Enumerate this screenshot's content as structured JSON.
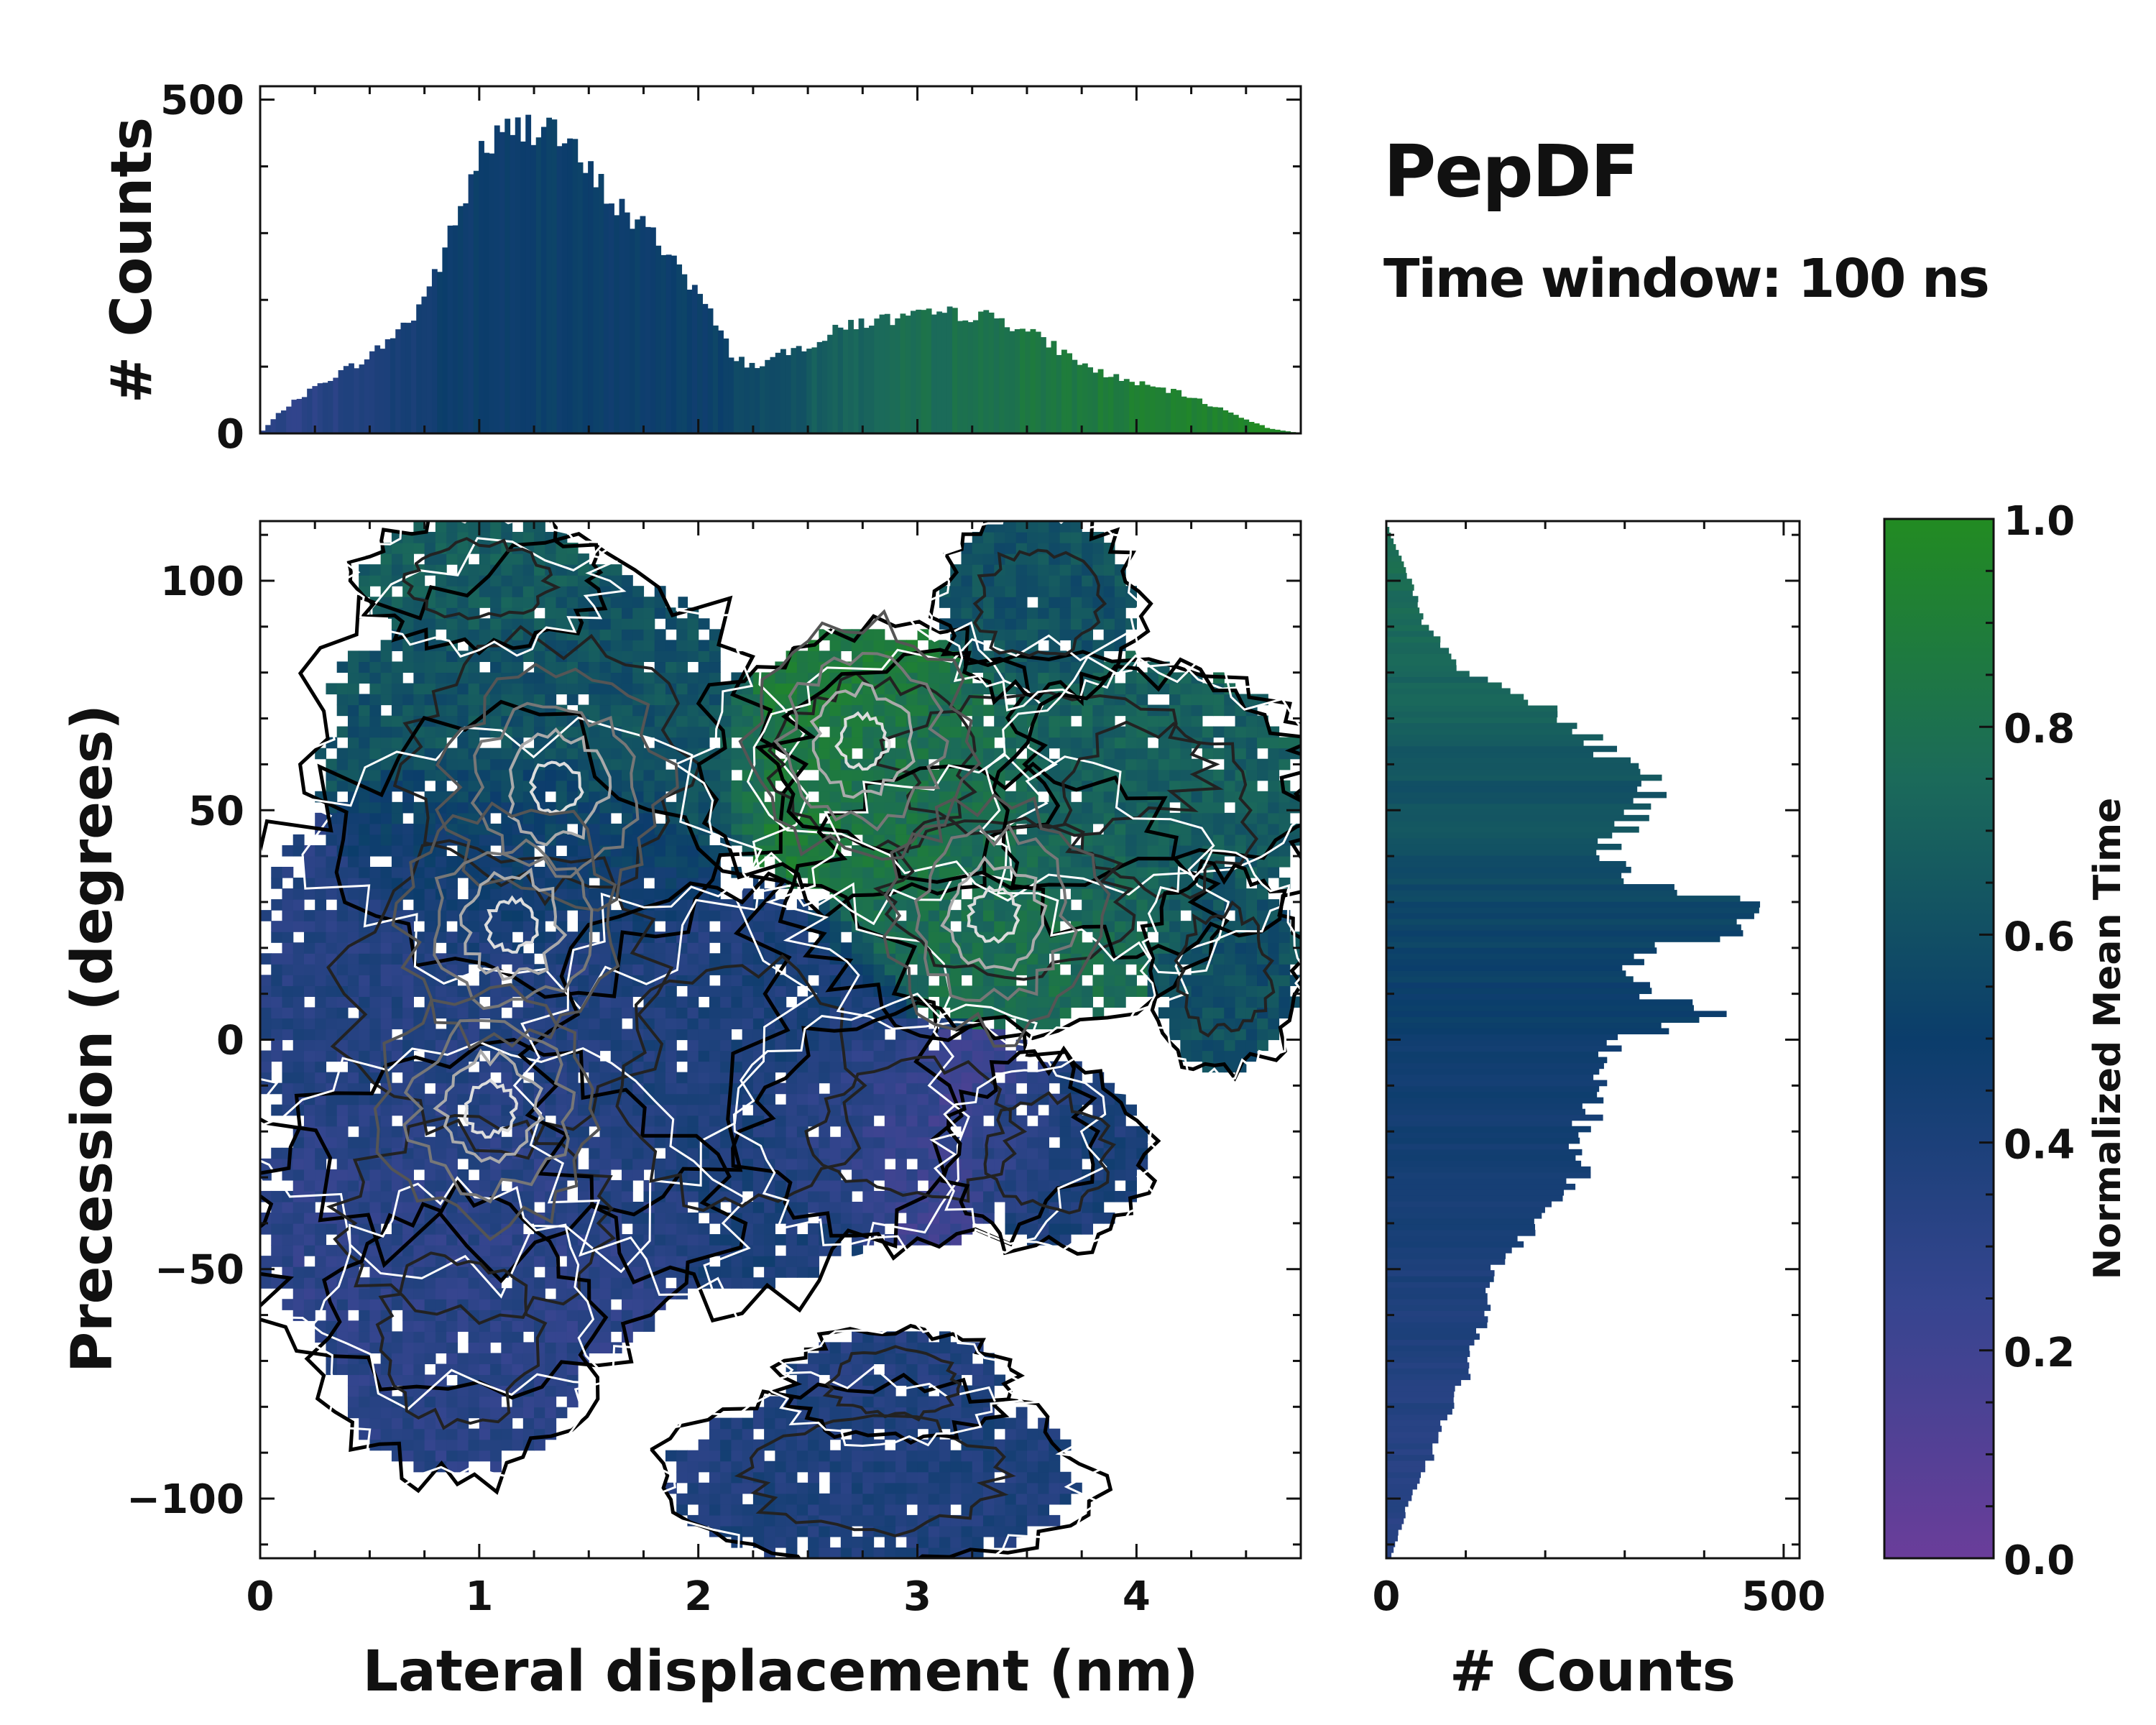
{
  "title": "PepDF",
  "subtitle": "Time window: 100 ns",
  "colors": {
    "low": "#6a3d9a",
    "mid": "#0b3d6b",
    "high": "#228b22",
    "axis": "#111111"
  },
  "chart_data": [
    {
      "id": "joint",
      "type": "heatmap",
      "xlabel": "Lateral displacement (nm)",
      "ylabel": "Precession (degrees)",
      "xlim": [
        0,
        4.75
      ],
      "ylim": [
        -113,
        113
      ],
      "xticks": [
        0,
        1,
        2,
        3,
        4
      ],
      "yticks": [
        -100,
        -50,
        0,
        50,
        100
      ],
      "xtick_labels": [
        "0",
        "1",
        "2",
        "3",
        "4"
      ],
      "ytick_labels": [
        "−100",
        "−50",
        "0",
        "50",
        "100"
      ],
      "contour_hotspots": [
        {
          "x": 1.35,
          "y": 55,
          "label": "hotspot"
        },
        {
          "x": 1.15,
          "y": 25,
          "label": "hotspot"
        },
        {
          "x": 1.05,
          "y": -15,
          "label": "hotspot"
        },
        {
          "x": 2.75,
          "y": 65,
          "label": "hotspot"
        },
        {
          "x": 3.35,
          "y": 27,
          "label": "hotspot"
        }
      ]
    },
    {
      "id": "top_hist",
      "type": "bar",
      "ylabel": "# Counts",
      "xlim": [
        0,
        4.75
      ],
      "ylim": [
        0,
        520
      ],
      "yticks": [
        0,
        500
      ],
      "ytick_labels": [
        "0",
        "500"
      ],
      "profile_x": [
        0.0,
        0.1,
        0.3,
        0.5,
        0.7,
        0.8,
        0.9,
        1.0,
        1.1,
        1.2,
        1.3,
        1.4,
        1.55,
        1.7,
        1.85,
        2.0,
        2.15,
        2.25,
        2.4,
        2.55,
        2.7,
        2.85,
        3.0,
        3.2,
        3.4,
        3.6,
        3.8,
        4.0,
        4.2,
        4.4,
        4.6,
        4.75
      ],
      "profile_y": [
        0,
        35,
        80,
        115,
        175,
        240,
        320,
        420,
        445,
        455,
        475,
        430,
        370,
        320,
        280,
        210,
        120,
        100,
        120,
        140,
        165,
        170,
        175,
        180,
        170,
        135,
        95,
        75,
        60,
        35,
        8,
        0
      ],
      "color_profile": [
        0.3,
        0.3,
        0.33,
        0.38,
        0.44,
        0.48,
        0.5,
        0.5,
        0.5,
        0.5,
        0.5,
        0.5,
        0.5,
        0.5,
        0.5,
        0.5,
        0.55,
        0.58,
        0.62,
        0.68,
        0.72,
        0.75,
        0.78,
        0.8,
        0.82,
        0.85,
        0.88,
        0.9,
        0.92,
        0.95,
        0.97,
        0.97
      ]
    },
    {
      "id": "right_hist",
      "type": "bar",
      "xlabel": "# Counts",
      "xlim": [
        0,
        520
      ],
      "xticks": [
        0,
        500
      ],
      "xtick_labels": [
        "0",
        "500"
      ],
      "profile_y": [
        -113,
        -108,
        -100,
        -90,
        -80,
        -70,
        -60,
        -50,
        -40,
        -30,
        -20,
        -10,
        0,
        5,
        10,
        15,
        20,
        25,
        30,
        35,
        40,
        45,
        50,
        55,
        60,
        65,
        70,
        75,
        80,
        90,
        100,
        108,
        113
      ],
      "profile_x": [
        5,
        15,
        30,
        60,
        80,
        110,
        120,
        130,
        200,
        240,
        250,
        260,
        290,
        420,
        330,
        310,
        340,
        470,
        440,
        300,
        270,
        290,
        320,
        340,
        300,
        260,
        230,
        170,
        100,
        50,
        30,
        10,
        0
      ],
      "color_profile": [
        0.33,
        0.33,
        0.33,
        0.34,
        0.35,
        0.37,
        0.38,
        0.4,
        0.42,
        0.44,
        0.45,
        0.46,
        0.48,
        0.5,
        0.5,
        0.52,
        0.54,
        0.55,
        0.56,
        0.58,
        0.6,
        0.62,
        0.62,
        0.62,
        0.64,
        0.66,
        0.7,
        0.72,
        0.72,
        0.74,
        0.76,
        0.78,
        0.78
      ]
    },
    {
      "id": "colorbar",
      "type": "colorbar",
      "label": "Normalized Mean Time",
      "lim": [
        0,
        1
      ],
      "ticks": [
        0.0,
        0.2,
        0.4,
        0.6,
        0.8,
        1.0
      ],
      "tick_labels": [
        "0.0",
        "0.2",
        "0.4",
        "0.6",
        "0.8",
        "1.0"
      ]
    }
  ]
}
